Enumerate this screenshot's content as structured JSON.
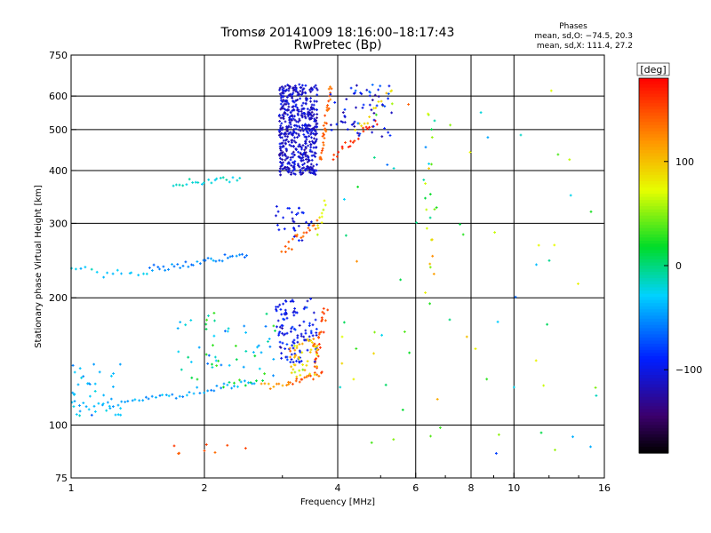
{
  "chart_data": {
    "type": "scatter",
    "title": "Tromsø 20141009 18:16:00–18:17:43",
    "subtitle": "RwPretec (Bp)",
    "xlabel": "Frequency [MHz]",
    "ylabel": "Stationary phase Virtual Height [km]",
    "x_scale": "log",
    "y_scale": "log",
    "xlim": [
      1,
      16
    ],
    "ylim": [
      75,
      750
    ],
    "x_ticks": [
      1,
      2,
      4,
      6,
      8,
      10,
      16
    ],
    "y_ticks": [
      75,
      100,
      200,
      300,
      400,
      500,
      600,
      750
    ],
    "x_tick_labels": [
      "1",
      "2",
      "4",
      "6",
      "8",
      "10",
      "16"
    ],
    "y_tick_labels": [
      "75",
      "100",
      "200",
      "300",
      "400",
      "500",
      "600",
      "750"
    ],
    "grid_x": [
      2,
      4,
      6,
      8,
      10
    ],
    "grid_y": [
      100,
      200,
      300,
      400,
      500,
      600
    ],
    "grid": true,
    "legend": {
      "title": "Phases",
      "line1": "mean, sd,O: −74.5, 20.3",
      "line2": "mean, sd,X: 111.4, 27.2",
      "position": "top-right"
    },
    "colorbar": {
      "label": "[deg]",
      "min": -180,
      "max": 180,
      "ticks": [
        100,
        0,
        -100
      ],
      "tick_labels": [
        "100",
        "0",
        "−100"
      ],
      "colormap": "rainbow"
    },
    "series": [
      {
        "kind": "trace",
        "f0": 1.0,
        "f1": 1.3,
        "h0": 112,
        "h1": 110,
        "n": 14,
        "ph": -40,
        "jit": 0.03
      },
      {
        "kind": "trace",
        "f0": 1.3,
        "f1": 2.6,
        "h0": 113,
        "h1": 126,
        "n": 40,
        "ph": -45,
        "jit": 0.02
      },
      {
        "kind": "trace",
        "f0": 2.2,
        "f1": 2.7,
        "h0": 124,
        "h1": 128,
        "n": 8,
        "ph": 20,
        "jit": 0.02
      },
      {
        "kind": "trace",
        "f0": 2.7,
        "f1": 3.1,
        "h0": 125,
        "h1": 124,
        "n": 10,
        "ph": 120,
        "jit": 0.02
      },
      {
        "kind": "trace",
        "f0": 3.1,
        "f1": 3.7,
        "h0": 125,
        "h1": 133,
        "n": 18,
        "ph": 145,
        "jit": 0.02
      },
      {
        "kind": "trace",
        "f0": 3.55,
        "f1": 3.75,
        "h0": 135,
        "h1": 190,
        "n": 26,
        "ph": 150,
        "jit": 0.04
      },
      {
        "kind": "trace",
        "f0": 1.0,
        "f1": 1.5,
        "h0": 230,
        "h1": 228,
        "n": 16,
        "ph": -30,
        "jit": 0.03
      },
      {
        "kind": "trace",
        "f0": 1.5,
        "f1": 2.5,
        "h0": 232,
        "h1": 254,
        "n": 36,
        "ph": -55,
        "jit": 0.02
      },
      {
        "kind": "trace",
        "f0": 3.0,
        "f1": 3.6,
        "h0": 257,
        "h1": 300,
        "n": 20,
        "ph": 140,
        "jit": 0.03
      },
      {
        "kind": "trace",
        "f0": 3.6,
        "f1": 3.75,
        "h0": 290,
        "h1": 330,
        "n": 10,
        "ph": 70,
        "jit": 0.03
      },
      {
        "kind": "trace",
        "f0": 1.7,
        "f1": 2.4,
        "h0": 370,
        "h1": 380,
        "n": 22,
        "ph": -20,
        "jit": 0.02
      },
      {
        "kind": "trace",
        "f0": 3.65,
        "f1": 3.85,
        "h0": 420,
        "h1": 630,
        "n": 34,
        "ph": 140,
        "jit": 0.03
      },
      {
        "kind": "trace",
        "f0": 3.9,
        "f1": 4.9,
        "h0": 430,
        "h1": 520,
        "n": 22,
        "ph": 165,
        "jit": 0.03
      },
      {
        "kind": "trace",
        "f0": 4.4,
        "f1": 5.3,
        "h0": 500,
        "h1": 620,
        "n": 14,
        "ph": 90,
        "jit": 0.03
      },
      {
        "kind": "cloud",
        "f0": 2.95,
        "f1": 3.6,
        "h0": 390,
        "h1": 640,
        "n": 520,
        "ph": -110,
        "sd": 18
      },
      {
        "kind": "cloud",
        "f0": 3.85,
        "f1": 5.3,
        "h0": 470,
        "h1": 640,
        "n": 60,
        "ph": -90,
        "sd": 40
      },
      {
        "kind": "cloud",
        "f0": 2.9,
        "f1": 3.6,
        "h0": 140,
        "h1": 200,
        "n": 110,
        "ph": -100,
        "sd": 25
      },
      {
        "kind": "cloud",
        "f0": 3.1,
        "f1": 3.6,
        "h0": 130,
        "h1": 160,
        "n": 50,
        "ph": 100,
        "sd": 40
      },
      {
        "kind": "cloud",
        "f0": 2.9,
        "f1": 3.5,
        "h0": 270,
        "h1": 330,
        "n": 30,
        "ph": -100,
        "sd": 20
      },
      {
        "kind": "cloud",
        "f0": 1.0,
        "f1": 1.3,
        "h0": 105,
        "h1": 140,
        "n": 35,
        "ph": -40,
        "sd": 20
      },
      {
        "kind": "cloud",
        "f0": 1.7,
        "f1": 2.9,
        "h0": 128,
        "h1": 185,
        "n": 55,
        "ph": -10,
        "sd": 50
      },
      {
        "kind": "cloud",
        "f0": 6.3,
        "f1": 6.7,
        "h0": 190,
        "h1": 620,
        "n": 22,
        "ph": 40,
        "sd": 70
      },
      {
        "kind": "cloud",
        "f0": 4.0,
        "f1": 16.0,
        "h0": 85,
        "h1": 630,
        "n": 70,
        "ph": 20,
        "sd": 110
      },
      {
        "kind": "cloud",
        "f0": 1.7,
        "f1": 2.5,
        "h0": 85,
        "h1": 90,
        "n": 8,
        "ph": 150,
        "sd": 15
      }
    ]
  }
}
